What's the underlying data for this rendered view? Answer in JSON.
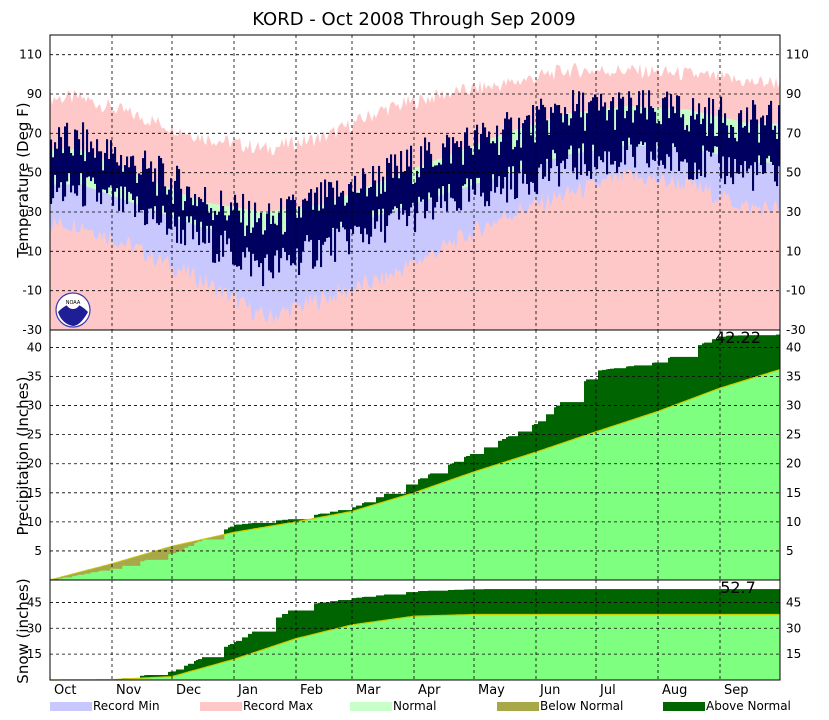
{
  "chart_data": [
    {
      "type": "area",
      "panel": "temperature",
      "title": "KORD - Oct 2008 Through Sep 2009",
      "ylabel": "Temperature (Deg F)",
      "ylim": [
        -30,
        120
      ],
      "yticks": [
        -30,
        -10,
        10,
        30,
        50,
        70,
        90,
        110
      ],
      "months": [
        "Oct",
        "Nov",
        "Dec",
        "Jan",
        "Feb",
        "Mar",
        "Apr",
        "May",
        "Jun",
        "Jul",
        "Aug",
        "Sep"
      ],
      "grid": true,
      "monthly_approx": {
        "record_max": [
          88,
          78,
          68,
          62,
          68,
          82,
          90,
          95,
          102,
          102,
          100,
          96
        ],
        "normal_high": [
          62,
          48,
          35,
          30,
          34,
          46,
          58,
          70,
          80,
          84,
          82,
          75
        ],
        "normal_low": [
          44,
          33,
          22,
          16,
          20,
          29,
          39,
          49,
          59,
          64,
          63,
          55
        ],
        "record_min": [
          24,
          10,
          -5,
          -24,
          -14,
          -4,
          12,
          28,
          39,
          48,
          44,
          32
        ],
        "observed_high": [
          65,
          52,
          36,
          24,
          36,
          48,
          62,
          70,
          82,
          82,
          80,
          76
        ],
        "observed_low": [
          45,
          34,
          20,
          5,
          16,
          28,
          38,
          48,
          58,
          62,
          60,
          54
        ]
      },
      "logo": "NOAA"
    },
    {
      "type": "area",
      "panel": "precipitation",
      "ylabel": "Precipitation (Inches)",
      "ylim": [
        0,
        43
      ],
      "yticks": [
        5,
        10,
        15,
        20,
        25,
        30,
        35,
        40
      ],
      "total_label": "42.22",
      "cumulative_normal_monthly": [
        0,
        2.8,
        5.8,
        8.2,
        10.0,
        11.8,
        15.0,
        18.6,
        22.0,
        25.5,
        29.0,
        33.0,
        36.2
      ],
      "cumulative_observed_monthly": [
        0,
        2.0,
        4.6,
        9.5,
        10.6,
        12.5,
        17.0,
        22.0,
        27.0,
        36.0,
        37.5,
        42.0,
        42.22
      ]
    },
    {
      "type": "area",
      "panel": "snow",
      "ylabel": "Snow (inches)",
      "ylim": [
        0,
        58
      ],
      "yticks": [
        15,
        30,
        45
      ],
      "total_label": "52.7",
      "cumulative_normal_monthly": [
        0,
        0.2,
        2.0,
        12.0,
        24.0,
        32.0,
        37.0,
        38.0,
        38.0,
        38.0,
        38.0,
        38.0,
        38.0
      ],
      "cumulative_observed_monthly": [
        0,
        0.2,
        5.0,
        22.0,
        43.0,
        47.5,
        51.5,
        52.7,
        52.7,
        52.7,
        52.7,
        52.7,
        52.7
      ]
    }
  ],
  "legend": [
    {
      "label": "Record Min",
      "color": "#c8c8ff"
    },
    {
      "label": "Record Max",
      "color": "#ffc8c8"
    },
    {
      "label": "Normal",
      "color": "#c8ffc8"
    },
    {
      "label": "Below Normal",
      "color": "#a8a848"
    },
    {
      "label": "Above Normal",
      "color": "#006400"
    }
  ],
  "colors": {
    "observed_temp": "#000060",
    "normal_fill": "#7fff7f",
    "above": "#006400",
    "below": "#a8a848",
    "normal_line": "#cccc00"
  }
}
